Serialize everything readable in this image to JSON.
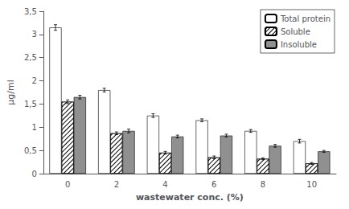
{
  "chart_data": {
    "type": "bar",
    "xlabel": "wastewater conc. (%)",
    "ylabel": "µg/ml",
    "categories": [
      0,
      2,
      4,
      6,
      8,
      10
    ],
    "series": [
      {
        "name": "Total protein",
        "color": "#ffffff",
        "values": [
          3.15,
          1.8,
          1.25,
          1.15,
          0.92,
          0.7
        ],
        "errors": [
          0.06,
          0.04,
          0.04,
          0.03,
          0.03,
          0.04
        ]
      },
      {
        "name": "Soluble",
        "color": "#ffffff",
        "values": [
          1.55,
          0.87,
          0.45,
          0.35,
          0.32,
          0.22
        ],
        "errors": [
          0.04,
          0.03,
          0.03,
          0.03,
          0.02,
          0.02
        ]
      },
      {
        "name": "Insoluble",
        "color": "#909090",
        "values": [
          1.65,
          0.92,
          0.8,
          0.82,
          0.6,
          0.48
        ],
        "errors": [
          0.04,
          0.04,
          0.03,
          0.03,
          0.03,
          0.02
        ]
      }
    ],
    "ylim": [
      0,
      3.5
    ],
    "yticks": [
      0,
      {
        "value": 0.5,
        "label": "0,5"
      },
      1,
      {
        "value": 1.5,
        "label": "1,5"
      },
      2,
      {
        "value": 2.5,
        "label": "2,5"
      },
      3,
      {
        "value": 3.5,
        "label": "3,5"
      }
    ],
    "grid": false,
    "legend": "upper right"
  }
}
